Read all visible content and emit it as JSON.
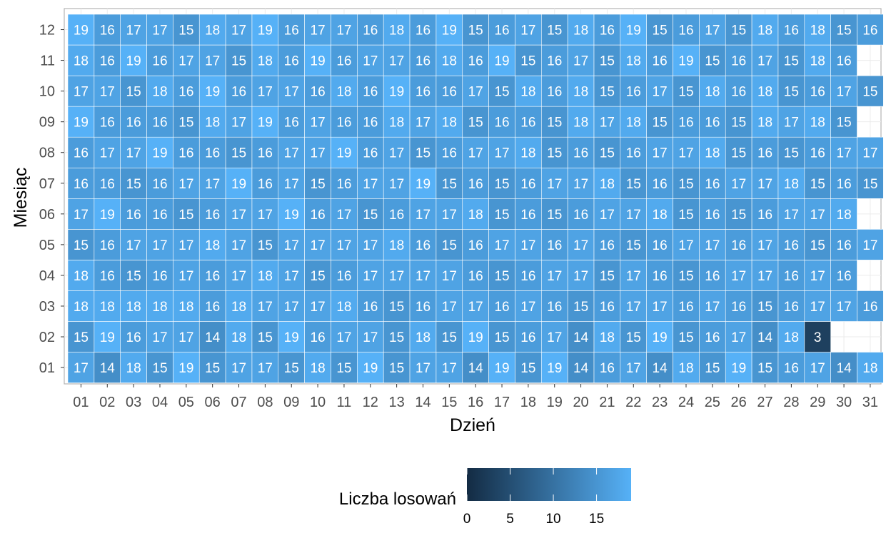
{
  "chart_data": {
    "type": "heatmap",
    "xlabel": "Dzień",
    "ylabel": "Miesiąc",
    "x_categories": [
      "01",
      "02",
      "03",
      "04",
      "05",
      "06",
      "07",
      "08",
      "09",
      "10",
      "11",
      "12",
      "13",
      "14",
      "15",
      "16",
      "17",
      "18",
      "19",
      "20",
      "21",
      "22",
      "23",
      "24",
      "25",
      "26",
      "27",
      "28",
      "29",
      "30",
      "31"
    ],
    "y_categories": [
      "01",
      "02",
      "03",
      "04",
      "05",
      "06",
      "07",
      "08",
      "09",
      "10",
      "11",
      "12"
    ],
    "values": [
      [
        17,
        14,
        18,
        15,
        19,
        15,
        17,
        17,
        15,
        18,
        15,
        19,
        15,
        17,
        17,
        14,
        19,
        15,
        19,
        14,
        16,
        17,
        14,
        18,
        15,
        19,
        15,
        16,
        17,
        14,
        18
      ],
      [
        15,
        19,
        16,
        17,
        17,
        14,
        18,
        15,
        19,
        16,
        17,
        17,
        15,
        18,
        15,
        19,
        15,
        16,
        17,
        14,
        18,
        15,
        19,
        15,
        16,
        17,
        14,
        18,
        3,
        null,
        null
      ],
      [
        18,
        18,
        18,
        18,
        18,
        16,
        18,
        17,
        17,
        17,
        18,
        16,
        15,
        16,
        17,
        17,
        16,
        17,
        16,
        15,
        16,
        17,
        17,
        16,
        17,
        16,
        15,
        16,
        17,
        17,
        16
      ],
      [
        18,
        16,
        15,
        16,
        17,
        16,
        17,
        18,
        17,
        15,
        16,
        17,
        17,
        17,
        17,
        16,
        15,
        16,
        17,
        17,
        15,
        17,
        16,
        15,
        16,
        17,
        17,
        16,
        17,
        16,
        null
      ],
      [
        15,
        16,
        17,
        17,
        17,
        18,
        17,
        15,
        17,
        17,
        17,
        17,
        18,
        16,
        15,
        16,
        17,
        17,
        16,
        17,
        16,
        15,
        16,
        17,
        17,
        16,
        17,
        16,
        15,
        16,
        17
      ],
      [
        17,
        19,
        16,
        16,
        15,
        16,
        17,
        17,
        19,
        16,
        17,
        15,
        16,
        17,
        17,
        18,
        15,
        16,
        15,
        16,
        17,
        17,
        18,
        15,
        16,
        15,
        16,
        17,
        17,
        18,
        null
      ],
      [
        16,
        16,
        15,
        16,
        17,
        17,
        19,
        16,
        17,
        15,
        16,
        17,
        17,
        19,
        15,
        16,
        15,
        16,
        17,
        17,
        18,
        15,
        16,
        15,
        16,
        17,
        17,
        18,
        15,
        16,
        15
      ],
      [
        16,
        17,
        17,
        19,
        16,
        16,
        15,
        16,
        17,
        17,
        19,
        16,
        17,
        15,
        16,
        17,
        17,
        18,
        15,
        16,
        15,
        16,
        17,
        17,
        18,
        15,
        16,
        15,
        16,
        17,
        17
      ],
      [
        19,
        16,
        16,
        16,
        15,
        18,
        17,
        19,
        16,
        17,
        16,
        16,
        18,
        17,
        18,
        15,
        16,
        16,
        15,
        18,
        17,
        18,
        15,
        16,
        16,
        15,
        18,
        17,
        18,
        15,
        null
      ],
      [
        17,
        17,
        15,
        18,
        16,
        19,
        16,
        17,
        17,
        16,
        18,
        16,
        19,
        16,
        16,
        17,
        15,
        18,
        16,
        18,
        15,
        16,
        17,
        15,
        18,
        16,
        18,
        15,
        16,
        17,
        15
      ],
      [
        18,
        16,
        19,
        16,
        17,
        17,
        15,
        18,
        16,
        19,
        16,
        17,
        17,
        16,
        18,
        16,
        19,
        15,
        16,
        17,
        15,
        18,
        16,
        19,
        15,
        16,
        17,
        15,
        18,
        16,
        null
      ],
      [
        19,
        16,
        17,
        17,
        15,
        18,
        17,
        19,
        16,
        17,
        17,
        16,
        18,
        16,
        19,
        15,
        16,
        17,
        15,
        18,
        16,
        19,
        15,
        16,
        17,
        15,
        18,
        16,
        18,
        15,
        16
      ]
    ],
    "color_scale": {
      "low": "#132B43",
      "high": "#56B1F7",
      "domain": [
        0,
        19
      ],
      "title": "Liczba losowań",
      "ticks": [
        0,
        5,
        10,
        15
      ]
    },
    "grid": true,
    "legend_position": "bottom"
  }
}
